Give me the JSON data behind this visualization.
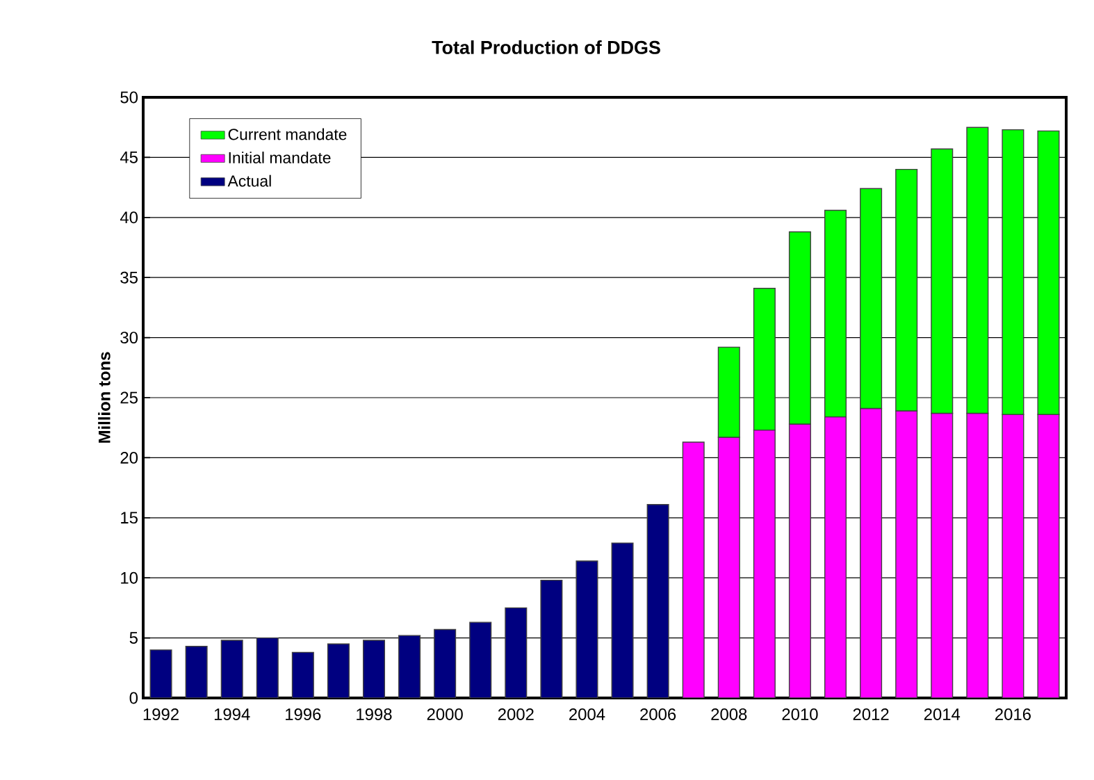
{
  "chart_data": {
    "type": "bar",
    "title": "Total Production of DDGS",
    "ylabel": "Million tons",
    "categories": [
      "1992",
      null,
      "1994",
      null,
      "1996",
      null,
      "1998",
      null,
      "2000",
      null,
      "2002",
      null,
      "2004",
      null,
      "2006",
      null,
      "2008",
      null,
      "2010",
      null,
      "2012",
      null,
      "2014",
      null,
      "2016",
      null
    ],
    "stacked": true,
    "series": [
      {
        "name": "Actual",
        "color": "#000080",
        "values": [
          4.0,
          4.3,
          4.8,
          5.0,
          3.8,
          4.5,
          4.8,
          5.2,
          5.7,
          6.3,
          7.5,
          9.8,
          11.4,
          12.9,
          16.1,
          null,
          null,
          null,
          null,
          null,
          null,
          null,
          null,
          null,
          null,
          null
        ]
      },
      {
        "name": "Initial mandate",
        "color": "#ff00ff",
        "values": [
          null,
          null,
          null,
          null,
          null,
          null,
          null,
          null,
          null,
          null,
          null,
          null,
          null,
          null,
          null,
          21.3,
          21.7,
          22.3,
          22.8,
          23.4,
          24.1,
          23.9,
          23.7,
          23.7,
          23.6,
          23.6
        ]
      },
      {
        "name": "Current mandate",
        "color": "#00ff00",
        "values": [
          null,
          null,
          null,
          null,
          null,
          null,
          null,
          null,
          null,
          null,
          null,
          null,
          null,
          null,
          null,
          null,
          7.5,
          11.8,
          16.0,
          17.2,
          18.3,
          20.1,
          22.0,
          23.8,
          23.7,
          23.6
        ]
      }
    ],
    "ylim": [
      0,
      50
    ],
    "yticks": [
      0,
      5,
      10,
      15,
      20,
      25,
      30,
      35,
      40,
      45,
      50
    ],
    "grid": "y",
    "legend": "top left"
  }
}
